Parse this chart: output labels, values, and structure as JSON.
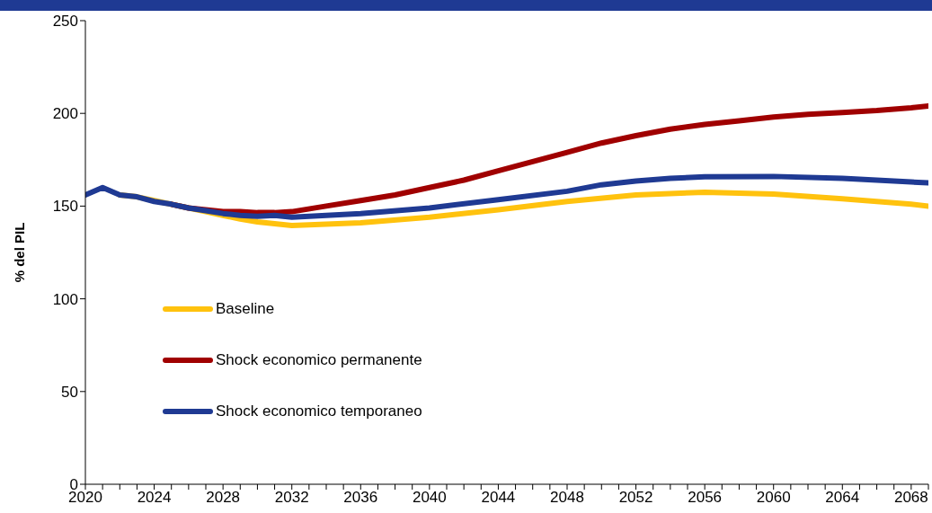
{
  "chart_data": {
    "type": "line",
    "ylabel": "% del PIL",
    "xlim": [
      2020,
      2069
    ],
    "xticks": [
      2020,
      {
        "value": 2021,
        "label": null
      },
      {
        "value": 2022,
        "label": null
      },
      {
        "value": 2023,
        "label": null
      },
      2024,
      {
        "value": 2025,
        "label": null
      },
      {
        "value": 2026,
        "label": null
      },
      {
        "value": 2027,
        "label": null
      },
      2028,
      {
        "value": 2029,
        "label": null
      },
      {
        "value": 2030,
        "label": null
      },
      {
        "value": 2031,
        "label": null
      },
      2032,
      {
        "value": 2033,
        "label": null
      },
      {
        "value": 2034,
        "label": null
      },
      {
        "value": 2035,
        "label": null
      },
      2036,
      {
        "value": 2037,
        "label": null
      },
      {
        "value": 2038,
        "label": null
      },
      {
        "value": 2039,
        "label": null
      },
      2040,
      {
        "value": 2041,
        "label": null
      },
      {
        "value": 2042,
        "label": null
      },
      {
        "value": 2043,
        "label": null
      },
      2044,
      {
        "value": 2045,
        "label": null
      },
      {
        "value": 2046,
        "label": null
      },
      {
        "value": 2047,
        "label": null
      },
      2048,
      {
        "value": 2049,
        "label": null
      },
      {
        "value": 2050,
        "label": null
      },
      {
        "value": 2051,
        "label": null
      },
      2052,
      {
        "value": 2053,
        "label": null
      },
      {
        "value": 2054,
        "label": null
      },
      {
        "value": 2055,
        "label": null
      },
      2056,
      {
        "value": 2057,
        "label": null
      },
      {
        "value": 2058,
        "label": null
      },
      {
        "value": 2059,
        "label": null
      },
      2060,
      {
        "value": 2061,
        "label": null
      },
      {
        "value": 2062,
        "label": null
      },
      {
        "value": 2063,
        "label": null
      },
      2064,
      {
        "value": 2065,
        "label": null
      },
      {
        "value": 2066,
        "label": null
      },
      {
        "value": 2067,
        "label": null
      },
      2068,
      {
        "value": 2069,
        "label": null
      }
    ],
    "ylim": [
      0,
      250
    ],
    "yticks": [
      0,
      50,
      100,
      150,
      200,
      250
    ],
    "grid": false,
    "legend": "left",
    "marker": "none",
    "line_style": "solid",
    "series": [
      {
        "name": "Baseline",
        "color": "#ffc20e",
        "x": [
          2022,
          2023,
          2024,
          2025,
          2026,
          2027,
          2028,
          2029,
          2030,
          2031,
          2032,
          2036,
          2040,
          2044,
          2048,
          2052,
          2056,
          2060,
          2064,
          2068,
          2069
        ],
        "values": [
          156,
          155,
          153,
          151,
          149,
          147,
          145,
          143,
          141.5,
          140.5,
          139.5,
          141,
          144,
          148,
          152.5,
          156,
          157.5,
          156.5,
          154,
          151,
          150
        ]
      },
      {
        "name": "Shock economico permanente",
        "color": "#a00000",
        "x": [
          2025,
          2026,
          2027,
          2028,
          2029,
          2030,
          2031,
          2032,
          2034,
          2036,
          2038,
          2040,
          2042,
          2044,
          2046,
          2048,
          2050,
          2052,
          2054,
          2056,
          2058,
          2060,
          2062,
          2064,
          2066,
          2068,
          2069
        ],
        "values": [
          151,
          149,
          148,
          147,
          147,
          146.5,
          146.5,
          147,
          150,
          153,
          156,
          160,
          164,
          169,
          174,
          179,
          184,
          188,
          191.5,
          194,
          196,
          198,
          199.5,
          200.5,
          201.5,
          203,
          204
        ]
      },
      {
        "name": "Shock economico temporaneo",
        "color": "#1f3a93",
        "x": [
          2020,
          2021,
          2022,
          2023,
          2024,
          2025,
          2026,
          2027,
          2028,
          2029,
          2030,
          2031,
          2032,
          2036,
          2040,
          2044,
          2048,
          2050,
          2052,
          2054,
          2056,
          2060,
          2064,
          2068,
          2069
        ],
        "values": [
          156,
          160,
          156,
          155,
          152.5,
          151,
          149,
          147.5,
          146,
          145,
          144.5,
          145,
          144,
          146,
          149,
          153.5,
          158,
          161.5,
          163.5,
          165,
          165.8,
          166,
          165,
          163,
          162.5
        ]
      }
    ]
  }
}
